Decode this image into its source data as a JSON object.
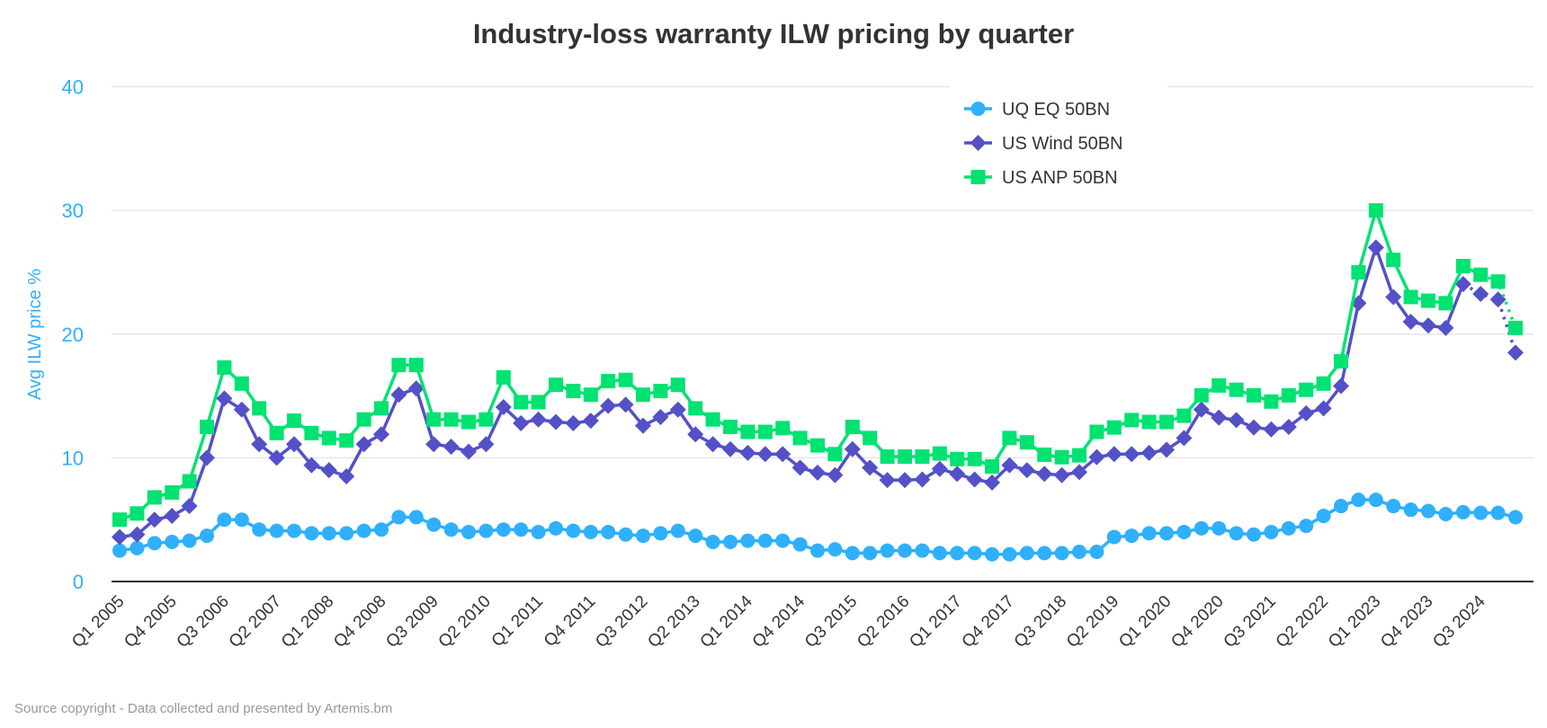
{
  "chart_data": {
    "type": "line",
    "title": "Industry-loss warranty ILW pricing by quarter",
    "ylabel": "Avg ILW price %",
    "xlabel": "",
    "ylim": [
      0,
      40
    ],
    "yticks": [
      "0",
      "10",
      "20",
      "30",
      "40"
    ],
    "grid": true,
    "legend_position": "top-right",
    "categories": [
      "Q1 2005",
      "Q2 2005",
      "Q3 2005",
      "Q4 2005",
      "Q1 2006",
      "Q2 2006",
      "Q3 2006",
      "Q4 2006",
      "Q1 2007",
      "Q2 2007",
      "Q3 2007",
      "Q4 2007",
      "Q1 2008",
      "Q2 2008",
      "Q3 2008",
      "Q4 2008",
      "Q1 2009",
      "Q2 2009",
      "Q3 2009",
      "Q4 2009",
      "Q1 2010",
      "Q2 2010",
      "Q3 2010",
      "Q4 2010",
      "Q1 2011",
      "Q2 2011",
      "Q3 2011",
      "Q4 2011",
      "Q1 2012",
      "Q2 2012",
      "Q3 2012",
      "Q4 2012",
      "Q1 2013",
      "Q2 2013",
      "Q3 2013",
      "Q4 2013",
      "Q1 2014",
      "Q2 2014",
      "Q3 2014",
      "Q4 2014",
      "Q1 2015",
      "Q2 2015",
      "Q3 2015",
      "Q4 2015",
      "Q1 2016",
      "Q2 2016",
      "Q3 2016",
      "Q4 2016",
      "Q1 2017",
      "Q2 2017",
      "Q3 2017",
      "Q4 2017",
      "Q1 2018",
      "Q2 2018",
      "Q3 2018",
      "Q4 2018",
      "Q1 2019",
      "Q2 2019",
      "Q3 2019",
      "Q4 2019",
      "Q1 2020",
      "Q2 2020",
      "Q3 2020",
      "Q4 2020",
      "Q1 2021",
      "Q2 2021",
      "Q3 2021",
      "Q4 2021",
      "Q1 2022",
      "Q2 2022",
      "Q3 2022",
      "Q4 2022",
      "Q1 2023",
      "Q2 2023",
      "Q3 2023",
      "Q4 2023",
      "Q1 2024",
      "Q2 2024",
      "Q3 2024",
      "Q4 2024",
      "Q1 2025"
    ],
    "tick_labels": [
      "Q1 2005",
      "Q4 2005",
      "Q3 2006",
      "Q2 2007",
      "Q1 2008",
      "Q4 2008",
      "Q3 2009",
      "Q2 2010",
      "Q1 2011",
      "Q4 2011",
      "Q3 2012",
      "Q2 2013",
      "Q1 2014",
      "Q4 2014",
      "Q3 2015",
      "Q2 2016",
      "Q1 2017",
      "Q4 2017",
      "Q3 2018",
      "Q2 2019",
      "Q1 2020",
      "Q4 2020",
      "Q3 2021",
      "Q2 2022",
      "Q1 2023",
      "Q4 2023",
      "Q3 2024"
    ],
    "series": [
      {
        "name": "UQ EQ 50BN",
        "color": "#2fb0fc",
        "marker": "circle",
        "values": [
          2.5,
          2.7,
          3.1,
          3.2,
          3.3,
          3.7,
          5.0,
          5.0,
          4.2,
          4.1,
          4.1,
          3.9,
          3.9,
          3.9,
          4.1,
          4.2,
          5.2,
          5.2,
          4.6,
          4.2,
          4.0,
          4.1,
          4.2,
          4.2,
          4.0,
          4.3,
          4.1,
          4.0,
          4.0,
          3.8,
          3.7,
          3.9,
          4.1,
          3.7,
          3.2,
          3.2,
          3.3,
          3.3,
          3.3,
          3.0,
          2.5,
          2.6,
          2.3,
          2.3,
          2.5,
          2.5,
          2.5,
          2.3,
          2.3,
          2.3,
          2.2,
          2.2,
          2.3,
          2.3,
          2.3,
          2.4,
          2.4,
          3.6,
          3.7,
          3.9,
          3.9,
          4.0,
          4.3,
          4.3,
          3.9,
          3.8,
          4.0,
          4.3,
          4.5,
          5.3,
          6.1,
          6.6,
          6.6,
          6.1,
          5.8,
          5.7,
          5.45,
          5.6,
          5.55,
          5.55,
          5.2
        ],
        "dotted_from": null
      },
      {
        "name": "US Wind 50BN",
        "color": "#5450c8",
        "marker": "diamond",
        "values": [
          3.6,
          3.8,
          5.0,
          5.3,
          6.1,
          10.0,
          14.8,
          13.9,
          11.1,
          10.0,
          11.1,
          9.4,
          9.0,
          8.5,
          11.1,
          11.9,
          15.1,
          15.6,
          11.1,
          10.9,
          10.5,
          11.1,
          14.1,
          12.8,
          13.1,
          12.9,
          12.8,
          13.0,
          14.2,
          14.3,
          12.6,
          13.3,
          13.9,
          11.9,
          11.1,
          10.7,
          10.4,
          10.3,
          10.3,
          9.2,
          8.8,
          8.6,
          10.7,
          9.2,
          8.2,
          8.2,
          8.25,
          9.1,
          8.7,
          8.25,
          8.0,
          9.4,
          9.0,
          8.7,
          8.6,
          8.85,
          10.05,
          10.3,
          10.3,
          10.4,
          10.65,
          11.6,
          13.9,
          13.25,
          13.05,
          12.45,
          12.3,
          12.5,
          13.6,
          14.0,
          15.8,
          22.5,
          27.0,
          23.0,
          21.0,
          20.7,
          20.5,
          24.05,
          23.25,
          22.8,
          18.5
        ],
        "dotted_from": "Q2 2024"
      },
      {
        "name": "US ANP 50BN",
        "color": "#00e272",
        "marker": "square",
        "values": [
          5.0,
          5.5,
          6.8,
          7.2,
          8.1,
          12.5,
          17.3,
          16.0,
          14.0,
          12.0,
          13.0,
          12.0,
          11.6,
          11.4,
          13.1,
          14.0,
          17.5,
          17.5,
          13.1,
          13.1,
          12.9,
          13.1,
          16.5,
          14.5,
          14.5,
          15.9,
          15.4,
          15.1,
          16.2,
          16.3,
          15.1,
          15.4,
          15.9,
          14.0,
          13.1,
          12.5,
          12.1,
          12.1,
          12.4,
          11.6,
          11.0,
          10.3,
          12.5,
          11.6,
          10.1,
          10.1,
          10.1,
          10.35,
          9.9,
          9.9,
          9.3,
          11.6,
          11.25,
          10.25,
          10.05,
          10.2,
          12.1,
          12.45,
          13.05,
          12.9,
          12.9,
          13.4,
          15.05,
          15.85,
          15.5,
          15.05,
          14.55,
          15.05,
          15.5,
          16.0,
          17.8,
          25.0,
          30.0,
          26.0,
          23.0,
          22.7,
          22.5,
          25.5,
          24.8,
          24.25,
          20.5
        ],
        "dotted_from": "Q3 2024"
      }
    ],
    "axis_color": "#2fb0fc"
  },
  "source": "Source copyright - Data collected and presented by Artemis.bm"
}
